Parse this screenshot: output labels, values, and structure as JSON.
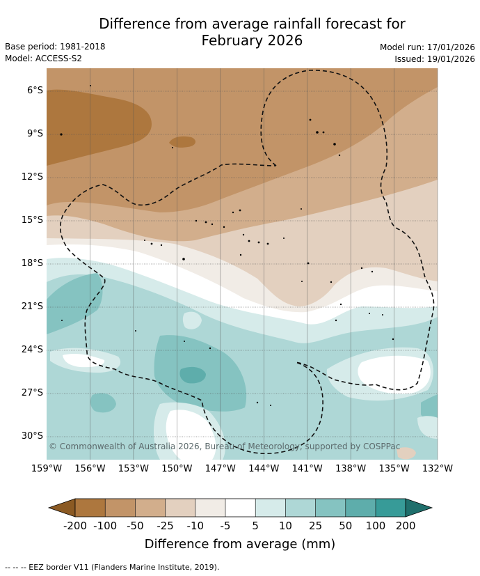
{
  "title_line1": "Difference from average rainfall forecast for",
  "title_line2": "February 2026",
  "base_period": "Base period: 1981-2018",
  "model": "Model: ACCESS-S2",
  "model_run": "Model run: 17/01/2026",
  "issued": "Issued: 19/01/2026",
  "lat_labels": [
    "6°S",
    "9°S",
    "12°S",
    "15°S",
    "18°S",
    "21°S",
    "24°S",
    "27°S",
    "30°S"
  ],
  "lon_labels": [
    "159°W",
    "156°W",
    "153°W",
    "150°W",
    "147°W",
    "144°W",
    "141°W",
    "138°W",
    "135°W",
    "132°W"
  ],
  "copyright": "© Commonwealth of Australia 2026, Bureau of Meteorology, supported by COSPPac",
  "colorbar": {
    "title": "Difference from average (mm)",
    "tick_labels": [
      "-200",
      "-100",
      "-50",
      "-25",
      "-10",
      "-5",
      "5",
      "10",
      "25",
      "50",
      "100",
      "200"
    ],
    "colors": [
      "#8b5a23",
      "#ad773e",
      "#c29468",
      "#d2ae8c",
      "#e3d0bf",
      "#f1ece6",
      "#ffffff",
      "#d6ebea",
      "#aed7d6",
      "#85c3c1",
      "#5eadab",
      "#379b98",
      "#1f6f6c"
    ]
  },
  "footnote": "-- -- -- EEZ border V11 (Flanders Marine Institute, 2019)."
}
